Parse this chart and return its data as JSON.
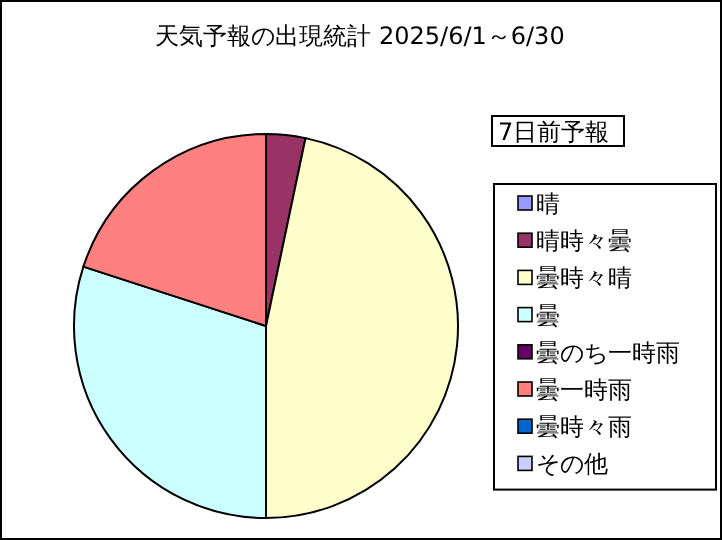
{
  "chart_data": {
    "type": "pie",
    "title": "天気予報の出現統計 2025/6/1～6/30",
    "legend_title": "7日前予報",
    "legend": "right",
    "categories": [
      "晴",
      "晴時々曇",
      "曇時々晴",
      "曇",
      "曇のち一時雨",
      "曇一時雨",
      "曇時々雨",
      "その他"
    ],
    "values": [
      0,
      3.3,
      46.7,
      30,
      0,
      20,
      0,
      0
    ],
    "colors": [
      "#9999ff",
      "#993366",
      "#ffffcc",
      "#ccffff",
      "#660066",
      "#ff8080",
      "#0066cc",
      "#ccccff"
    ]
  }
}
